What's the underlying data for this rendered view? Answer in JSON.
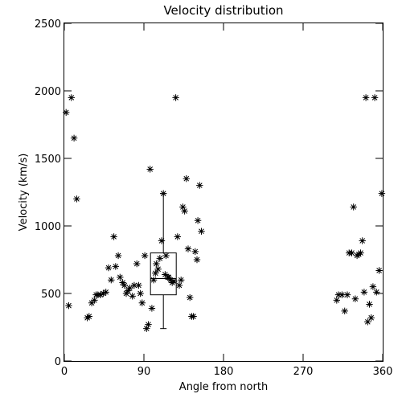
{
  "chart_data": {
    "type": "scatter",
    "title": "Velocity distribution",
    "xlabel": "Angle from north",
    "ylabel": "Velocity (km/s)",
    "xlim": [
      0,
      360
    ],
    "ylim": [
      0,
      2500
    ],
    "xticks": [
      0,
      90,
      180,
      270,
      360
    ],
    "yticks": [
      0,
      500,
      1000,
      1500,
      2000,
      2500
    ],
    "grid": false,
    "marker": "asterisk",
    "color": "#000000",
    "points": [
      [
        2,
        1840
      ],
      [
        5,
        410
      ],
      [
        8,
        1950
      ],
      [
        11,
        1650
      ],
      [
        14,
        1200
      ],
      [
        26,
        320
      ],
      [
        28,
        330
      ],
      [
        31,
        430
      ],
      [
        34,
        450
      ],
      [
        36,
        490
      ],
      [
        38,
        490
      ],
      [
        41,
        490
      ],
      [
        44,
        500
      ],
      [
        47,
        510
      ],
      [
        50,
        690
      ],
      [
        53,
        600
      ],
      [
        56,
        920
      ],
      [
        58,
        700
      ],
      [
        61,
        780
      ],
      [
        63,
        620
      ],
      [
        66,
        580
      ],
      [
        68,
        560
      ],
      [
        70,
        500
      ],
      [
        72,
        520
      ],
      [
        74,
        540
      ],
      [
        77,
        480
      ],
      [
        79,
        560
      ],
      [
        82,
        720
      ],
      [
        84,
        560
      ],
      [
        86,
        500
      ],
      [
        88,
        430
      ],
      [
        91,
        780
      ],
      [
        93,
        240
      ],
      [
        95,
        270
      ],
      [
        97,
        1420
      ],
      [
        99,
        390
      ],
      [
        101,
        600
      ],
      [
        103,
        650
      ],
      [
        104,
        720
      ],
      [
        106,
        680
      ],
      [
        108,
        760
      ],
      [
        110,
        890
      ],
      [
        112,
        1240
      ],
      [
        114,
        640
      ],
      [
        115,
        780
      ],
      [
        117,
        620
      ],
      [
        118,
        620
      ],
      [
        120,
        600
      ],
      [
        122,
        580
      ],
      [
        124,
        590
      ],
      [
        126,
        1950
      ],
      [
        128,
        920
      ],
      [
        130,
        560
      ],
      [
        132,
        600
      ],
      [
        134,
        1140
      ],
      [
        136,
        1110
      ],
      [
        138,
        1350
      ],
      [
        140,
        830
      ],
      [
        142,
        470
      ],
      [
        144,
        330
      ],
      [
        146,
        330
      ],
      [
        148,
        810
      ],
      [
        150,
        750
      ],
      [
        151,
        1040
      ],
      [
        153,
        1300
      ],
      [
        155,
        960
      ],
      [
        308,
        450
      ],
      [
        310,
        490
      ],
      [
        314,
        490
      ],
      [
        317,
        370
      ],
      [
        320,
        490
      ],
      [
        322,
        800
      ],
      [
        325,
        800
      ],
      [
        327,
        1140
      ],
      [
        329,
        460
      ],
      [
        331,
        780
      ],
      [
        333,
        790
      ],
      [
        335,
        800
      ],
      [
        337,
        890
      ],
      [
        339,
        510
      ],
      [
        341,
        1950
      ],
      [
        343,
        290
      ],
      [
        345,
        420
      ],
      [
        347,
        320
      ],
      [
        349,
        550
      ],
      [
        351,
        1950
      ],
      [
        353,
        510
      ],
      [
        356,
        670
      ],
      [
        359,
        1240
      ]
    ],
    "boxplot": {
      "x": 112,
      "whisker_low": 240,
      "q1": 490,
      "median": 610,
      "q3": 800,
      "whisker_high": 1240
    }
  }
}
